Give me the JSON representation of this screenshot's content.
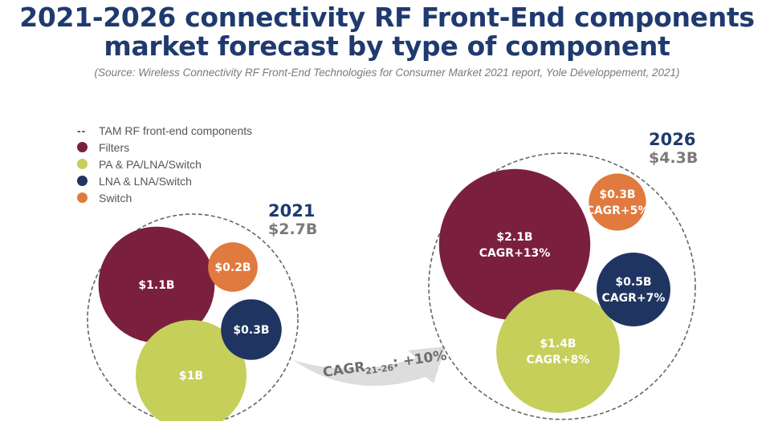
{
  "chart_data": {
    "type": "bubble",
    "title": "2021-2026 connectivity RF Front-End components market forecast by type of component",
    "title_lines": [
      "2021-2026 connectivity RF Front-End components",
      "market forecast by type of component"
    ],
    "source": "(Source: Wireless Connectivity RF Front-End Technologies for Consumer Market 2021 report, Yole Développement, 2021)",
    "legend": {
      "placement": "top-left",
      "items": [
        {
          "label": "TAM RF front-end components",
          "marker": "--",
          "color": "#555555"
        },
        {
          "label": "Filters",
          "marker": "dot",
          "color": "#7b1f3f"
        },
        {
          "label": "PA & PA/LNA/Switch",
          "marker": "dot",
          "color": "#c5cf5a"
        },
        {
          "label": "LNA & LNA/Switch",
          "marker": "dot",
          "color": "#1f3461"
        },
        {
          "label": "Switch",
          "marker": "dot",
          "color": "#e07a3e"
        }
      ]
    },
    "categories": [
      "Filters",
      "PA & PA/LNA/Switch",
      "LNA & LNA/Switch",
      "Switch"
    ],
    "unit": "$B",
    "series": [
      {
        "name": "2021",
        "year_label": "2021",
        "total_label": "$2.7B",
        "total": 2.7,
        "values": [
          1.1,
          1.0,
          0.3,
          0.2
        ],
        "labels": [
          [
            "$1.1B"
          ],
          [
            "$1B"
          ],
          [
            "$0.3B"
          ],
          [
            "$0.2B"
          ]
        ]
      },
      {
        "name": "2026",
        "year_label": "2026",
        "total_label": "$4.3B",
        "total": 4.3,
        "values": [
          2.1,
          1.4,
          0.5,
          0.3
        ],
        "cagr": [
          "+13%",
          "+8%",
          "+7%",
          "+5%"
        ],
        "labels": [
          [
            "$2.1B",
            "CAGR+13%"
          ],
          [
            "$1.4B",
            "CAGR+8%"
          ],
          [
            "$0.5B",
            "CAGR+7%"
          ],
          [
            "$0.3B",
            "CAGR+5%"
          ]
        ]
      }
    ],
    "arrow": {
      "label_main": "CAGR",
      "label_sub": "21-26",
      "label_value": ": +10%",
      "color": "#dddddd"
    },
    "colors": {
      "Filters": "#7b1f3f",
      "PA & PA/LNA/Switch": "#c5cf5a",
      "LNA & LNA/Switch": "#1f3461",
      "Switch": "#e07a3e",
      "title": "#1f3a6e",
      "total": "#7a7a7a"
    }
  }
}
